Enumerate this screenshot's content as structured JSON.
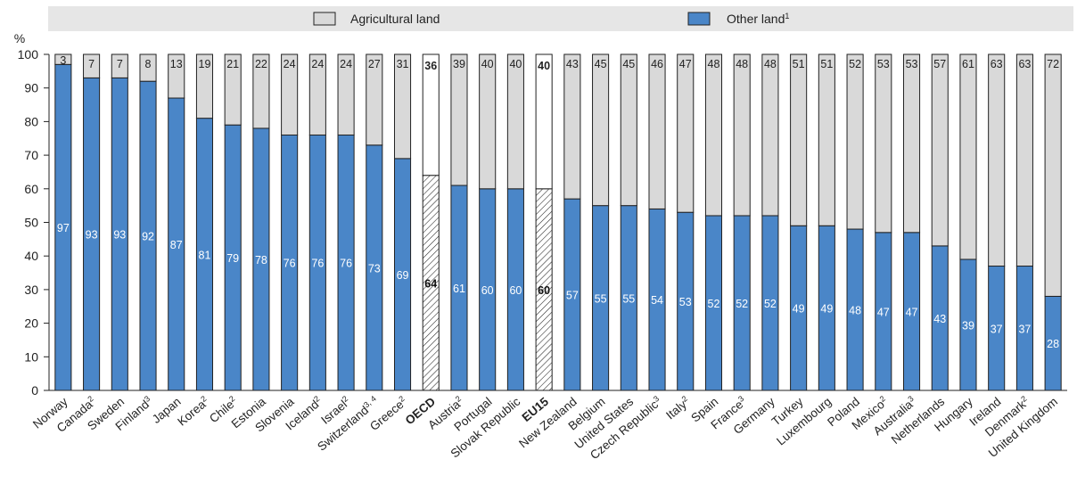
{
  "chart_data": {
    "type": "bar",
    "stacked": true,
    "y_unit": "%",
    "ylim": [
      0,
      100
    ],
    "yticks": [
      0,
      10,
      20,
      30,
      40,
      50,
      60,
      70,
      80,
      90,
      100
    ],
    "categories": [
      {
        "name": "Norway",
        "sup": ""
      },
      {
        "name": "Canada",
        "sup": "2"
      },
      {
        "name": "Sweden",
        "sup": ""
      },
      {
        "name": "Finland",
        "sup": "3"
      },
      {
        "name": "Japan",
        "sup": ""
      },
      {
        "name": "Korea",
        "sup": "2"
      },
      {
        "name": "Chile",
        "sup": "2"
      },
      {
        "name": "Estonia",
        "sup": ""
      },
      {
        "name": "Slovenia",
        "sup": ""
      },
      {
        "name": "Iceland",
        "sup": "2"
      },
      {
        "name": "Israel",
        "sup": "2"
      },
      {
        "name": "Switzerland",
        "sup": "3, 4"
      },
      {
        "name": "Greece",
        "sup": "2"
      },
      {
        "name": "OECD",
        "sup": "",
        "aggregate": true
      },
      {
        "name": "Austria",
        "sup": "2"
      },
      {
        "name": "Portugal",
        "sup": ""
      },
      {
        "name": "Slovak Republic",
        "sup": ""
      },
      {
        "name": "EU15",
        "sup": "",
        "aggregate": true
      },
      {
        "name": "New Zealand",
        "sup": ""
      },
      {
        "name": "Belgium",
        "sup": ""
      },
      {
        "name": "United States",
        "sup": ""
      },
      {
        "name": "Czech Republic",
        "sup": "3"
      },
      {
        "name": "Italy",
        "sup": "2"
      },
      {
        "name": "Spain",
        "sup": ""
      },
      {
        "name": "France",
        "sup": "3"
      },
      {
        "name": "Germany",
        "sup": ""
      },
      {
        "name": "Turkey",
        "sup": ""
      },
      {
        "name": "Luxembourg",
        "sup": ""
      },
      {
        "name": "Poland",
        "sup": ""
      },
      {
        "name": "Mexico",
        "sup": "2"
      },
      {
        "name": "Australia",
        "sup": "3"
      },
      {
        "name": "Netherlands",
        "sup": ""
      },
      {
        "name": "Hungary",
        "sup": ""
      },
      {
        "name": "Ireland",
        "sup": ""
      },
      {
        "name": "Denmark",
        "sup": "2"
      },
      {
        "name": "United Kingdom",
        "sup": ""
      }
    ],
    "series": [
      {
        "name": "Other land",
        "name_sup": "1",
        "color": "#4a86c8",
        "values": [
          97,
          93,
          93,
          92,
          87,
          81,
          79,
          78,
          76,
          76,
          76,
          73,
          69,
          64,
          61,
          60,
          60,
          60,
          57,
          55,
          55,
          54,
          53,
          52,
          52,
          52,
          49,
          49,
          48,
          47,
          47,
          43,
          39,
          37,
          37,
          28
        ]
      },
      {
        "name": "Agricultural land",
        "name_sup": "",
        "color": "#d9d9d9",
        "values": [
          3,
          7,
          7,
          8,
          13,
          19,
          21,
          22,
          24,
          24,
          24,
          27,
          31,
          36,
          39,
          40,
          40,
          40,
          43,
          45,
          45,
          46,
          47,
          48,
          48,
          48,
          51,
          51,
          52,
          53,
          53,
          57,
          61,
          63,
          63,
          72
        ]
      }
    ],
    "aggregate_fill": {
      "bottom": "hatched",
      "top": "#ffffff"
    },
    "legend_position": "top",
    "grid": false
  }
}
